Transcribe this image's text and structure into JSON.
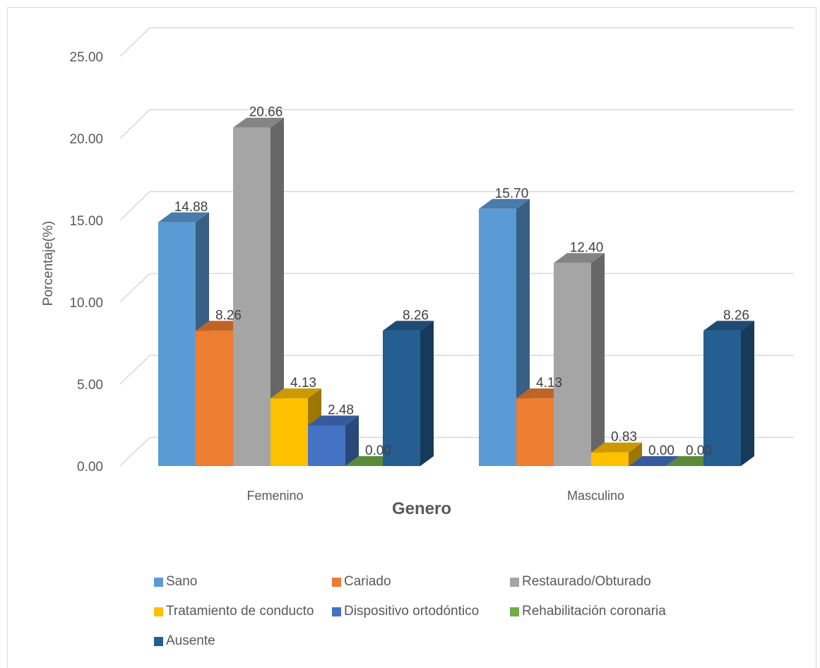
{
  "chart_data": {
    "type": "bar",
    "style": "3d-clustered-column",
    "categories": [
      "Femenino",
      "Masculino"
    ],
    "series": [
      {
        "name": "Sano",
        "values": [
          14.88,
          15.7
        ],
        "color": "#5B9BD5"
      },
      {
        "name": "Cariado",
        "values": [
          8.26,
          4.13
        ],
        "color": "#ED7D31"
      },
      {
        "name": "Restaurado/Obturado",
        "values": [
          20.66,
          12.4
        ],
        "color": "#A5A5A5"
      },
      {
        "name": "Tratamiento de conducto",
        "values": [
          4.13,
          0.83
        ],
        "color": "#FFC000"
      },
      {
        "name": "Dispositivo ortodóntico",
        "values": [
          2.48,
          0.0
        ],
        "color": "#4472C4"
      },
      {
        "name": "Rehabilitación coronaria",
        "values": [
          0.0,
          0.0
        ],
        "color": "#70AD47"
      },
      {
        "name": "Ausente",
        "values": [
          8.26,
          8.26
        ],
        "color": "#255E91"
      }
    ],
    "data_labels": [
      [
        "14.88",
        "15.70"
      ],
      [
        "8.26",
        "4.13"
      ],
      [
        "20.66",
        "12.40"
      ],
      [
        "4.13",
        "0.83"
      ],
      [
        "2.48",
        "0.00"
      ],
      [
        "0.00",
        "0.00"
      ],
      [
        "8.26",
        "8.26"
      ]
    ],
    "ylabel": "Porcentaje(%)",
    "xlabel": "Genero",
    "ylim": [
      0,
      25
    ],
    "yticks": [
      "0.00",
      "5.00",
      "10.00",
      "15.00",
      "20.00",
      "25.00"
    ],
    "grid": true,
    "legend_position": "bottom"
  }
}
